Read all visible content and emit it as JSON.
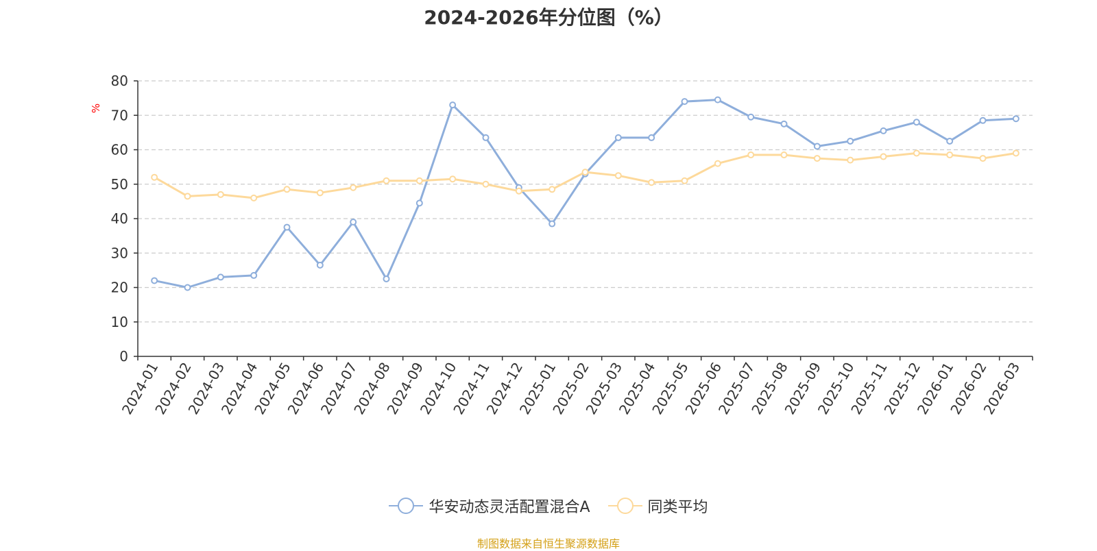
{
  "title": "2024-2026年分位图（%）",
  "source": "制图数据来自恒生聚源数据库",
  "chart_data": {
    "type": "line",
    "categories": [
      "2024-01",
      "2024-02",
      "2024-03",
      "2024-04",
      "2024-05",
      "2024-06",
      "2024-07",
      "2024-08",
      "2024-09",
      "2024-10",
      "2024-11",
      "2024-12",
      "2025-01",
      "2025-02",
      "2025-03",
      "2025-04",
      "2025-05",
      "2025-06",
      "2025-07",
      "2025-08",
      "2025-09",
      "2025-10",
      "2025-11",
      "2025-12",
      "2026-01",
      "2026-02",
      "2026-03"
    ],
    "ylabel": "%",
    "ylim": [
      0,
      80
    ],
    "yticks": [
      0,
      10,
      20,
      30,
      40,
      50,
      60,
      70,
      80
    ],
    "grid": true,
    "legend_position": "bottom",
    "series": [
      {
        "name": "华安动态灵活配置混合A",
        "color": "#8eaedb",
        "values": [
          22,
          20,
          23,
          23.5,
          37.5,
          26.5,
          39,
          22.5,
          44.5,
          73,
          63.5,
          49,
          38.5,
          53,
          63.5,
          63.5,
          74,
          74.5,
          69.5,
          67.5,
          61,
          62.5,
          65.5,
          68,
          62.5,
          68.5,
          69
        ]
      },
      {
        "name": "同类平均",
        "color": "#fdd99b",
        "values": [
          52,
          46.5,
          47,
          46,
          48.5,
          47.5,
          49,
          51,
          51,
          51.5,
          50,
          48,
          48.5,
          53.5,
          52.5,
          50.5,
          51,
          56,
          58.5,
          58.5,
          57.5,
          57,
          58,
          59,
          58.5,
          57.5,
          59
        ]
      }
    ]
  }
}
